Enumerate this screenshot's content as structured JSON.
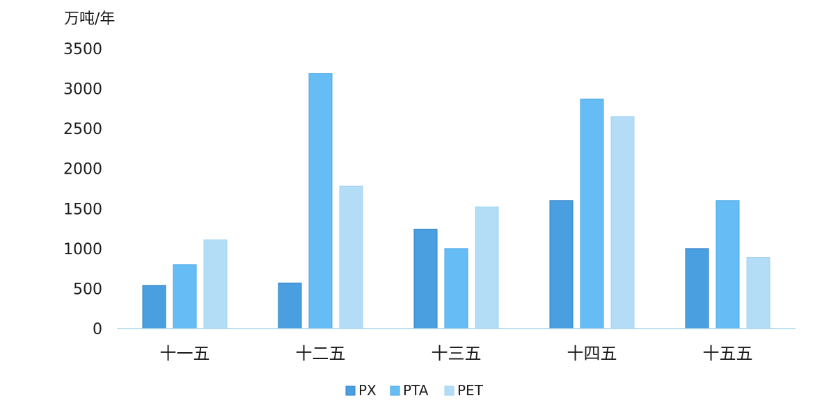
{
  "chart_data": {
    "type": "bar",
    "unit_label": "万吨/年",
    "categories": [
      "十一五",
      "十二五",
      "十三五",
      "十四五",
      "十五五"
    ],
    "series": [
      {
        "name": "PX",
        "values": [
          540,
          570,
          1240,
          1600,
          1000
        ],
        "color": "#4a9fe0",
        "stroke": "#2f7fc4"
      },
      {
        "name": "PTA",
        "values": [
          800,
          3190,
          1000,
          2870,
          1600
        ],
        "color": "#66bdf5",
        "stroke": "#4aa6e4"
      },
      {
        "name": "PET",
        "values": [
          1110,
          1780,
          1520,
          2650,
          890
        ],
        "color": "#b3ddf7",
        "stroke": "#a2d2f0"
      }
    ],
    "y_ticks": [
      "0",
      "500",
      "1000",
      "1500",
      "2000",
      "2500",
      "3000",
      "3500"
    ],
    "ylim": [
      0,
      3500
    ],
    "grid": false,
    "legend_position": "bottom-center"
  }
}
